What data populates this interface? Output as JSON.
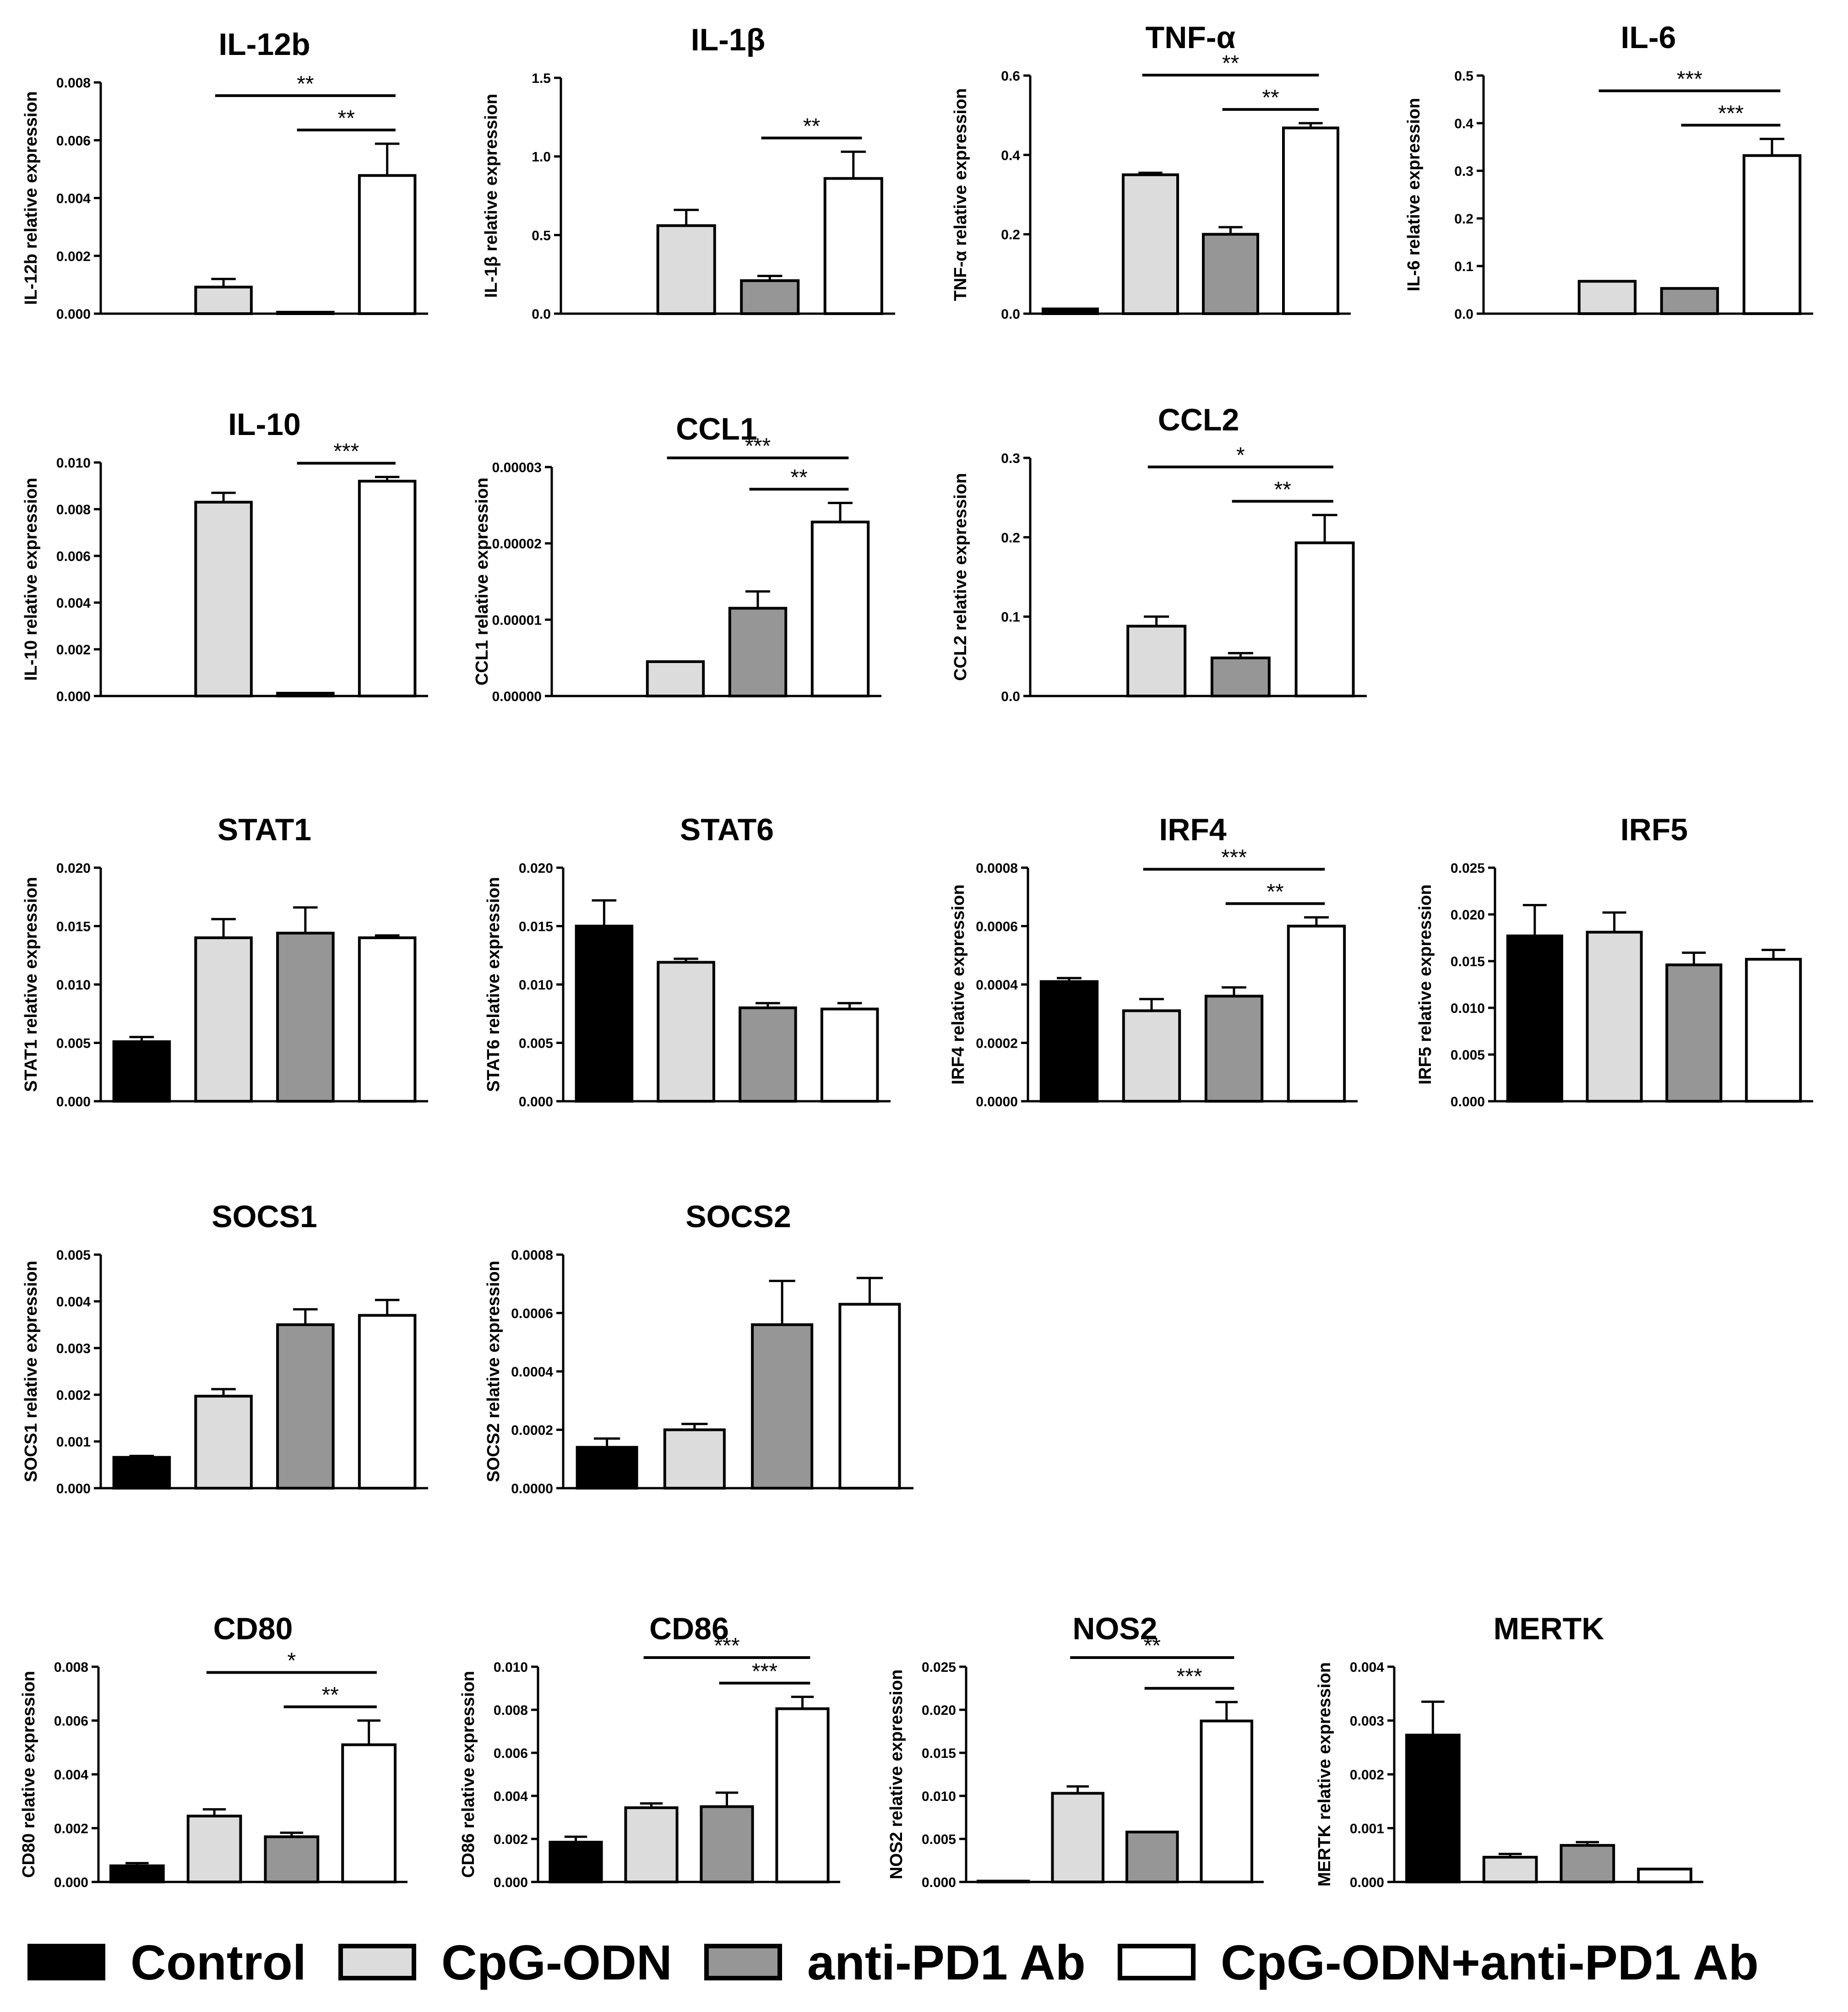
{
  "groups": [
    {
      "name": "Control",
      "color": "#000000"
    },
    {
      "name": "CpG-ODN",
      "color": "#dcdcdc"
    },
    {
      "name": "anti-PD1 Ab",
      "color": "#969696"
    },
    {
      "name": "CpG-ODN+anti-PD1 Ab",
      "color": "#ffffff"
    }
  ],
  "legend": {
    "items": [
      "Control",
      "CpG-ODN",
      "anti-PD1 Ab",
      "CpG-ODN+anti-PD1 Ab"
    ]
  },
  "chart_data": [
    {
      "id": "il12b",
      "type": "bar",
      "title": "IL-12b",
      "ylabel": "IL-12b relative expression",
      "ylim": [
        0,
        0.008
      ],
      "yticks": [
        "0.000",
        "0.002",
        "0.004",
        "0.006",
        "0.008"
      ],
      "categories": [
        "Control",
        "CpG-ODN",
        "anti-PD1 Ab",
        "CpG-ODN+anti-PD1 Ab"
      ],
      "values": [
        0,
        0.00092,
        5e-05,
        0.00478
      ],
      "errors": [
        0,
        0.00028,
        0,
        0.0011
      ],
      "significance": [
        {
          "from": 1,
          "to": 3,
          "label": "**"
        },
        {
          "from": 2,
          "to": 3,
          "label": "**"
        }
      ]
    },
    {
      "id": "il1b",
      "type": "bar",
      "title": "IL-1β",
      "ylabel": "IL-1β relative expression",
      "ylim": [
        0,
        1.5
      ],
      "yticks": [
        "0.0",
        "0.5",
        "1.0",
        "1.5"
      ],
      "categories": [
        "Control",
        "CpG-ODN",
        "anti-PD1 Ab",
        "CpG-ODN+anti-PD1 Ab"
      ],
      "values": [
        0,
        0.56,
        0.21,
        0.86
      ],
      "errors": [
        0,
        0.1,
        0.03,
        0.17
      ],
      "significance": [
        {
          "from": 2,
          "to": 3,
          "label": "**"
        }
      ]
    },
    {
      "id": "tnfa",
      "type": "bar",
      "title": "TNF-α",
      "ylabel": "TNF-α relative expression",
      "ylim": [
        0,
        0.6
      ],
      "yticks": [
        "0.0",
        "0.2",
        "0.4",
        "0.6"
      ],
      "categories": [
        "Control",
        "CpG-ODN",
        "anti-PD1 Ab",
        "CpG-ODN+anti-PD1 Ab"
      ],
      "values": [
        0.012,
        0.35,
        0.2,
        0.468
      ],
      "errors": [
        0,
        0.005,
        0.018,
        0.012
      ],
      "significance": [
        {
          "from": 1,
          "to": 3,
          "label": "**"
        },
        {
          "from": 2,
          "to": 3,
          "label": "**"
        }
      ]
    },
    {
      "id": "il6",
      "type": "bar",
      "title": "IL-6",
      "ylabel": "IL-6 relative expression",
      "ylim": [
        0,
        0.5
      ],
      "yticks": [
        "0.0",
        "0.1",
        "0.2",
        "0.3",
        "0.4",
        "0.5"
      ],
      "categories": [
        "Control",
        "CpG-ODN",
        "anti-PD1 Ab",
        "CpG-ODN+anti-PD1 Ab"
      ],
      "values": [
        0,
        0.068,
        0.053,
        0.332
      ],
      "errors": [
        0,
        0,
        0,
        0.035
      ],
      "significance": [
        {
          "from": 1,
          "to": 3,
          "label": "***"
        },
        {
          "from": 2,
          "to": 3,
          "label": "***"
        }
      ]
    },
    {
      "id": "il10",
      "type": "bar",
      "title": "IL-10",
      "ylabel": "IL-10 relative expression",
      "ylim": [
        0,
        0.01
      ],
      "yticks": [
        "0.000",
        "0.002",
        "0.004",
        "0.006",
        "0.008",
        "0.010"
      ],
      "categories": [
        "Control",
        "CpG-ODN",
        "anti-PD1 Ab",
        "CpG-ODN+anti-PD1 Ab"
      ],
      "values": [
        0,
        0.0083,
        0.00012,
        0.0092
      ],
      "errors": [
        0,
        0.0004,
        0,
        0.00018
      ],
      "significance": [
        {
          "from": 2,
          "to": 3,
          "label": "***"
        }
      ]
    },
    {
      "id": "ccl1",
      "type": "bar",
      "title": "CCL1",
      "ylabel": "CCL1 relative expression",
      "ylim": [
        0,
        3e-05
      ],
      "yticks": [
        "0.00000",
        "0.00001",
        "0.00002",
        "0.00003"
      ],
      "categories": [
        "Control",
        "CpG-ODN",
        "anti-PD1 Ab",
        "CpG-ODN+anti-PD1 Ab"
      ],
      "values": [
        0,
        4.5e-06,
        1.15e-05,
        2.28e-05
      ],
      "errors": [
        0,
        0,
        2.2e-06,
        2.5e-06
      ],
      "significance": [
        {
          "from": 1,
          "to": 3,
          "label": "***"
        },
        {
          "from": 2,
          "to": 3,
          "label": "**"
        }
      ]
    },
    {
      "id": "ccl2",
      "type": "bar",
      "title": "CCL2",
      "ylabel": "CCL2 relative expression",
      "ylim": [
        0,
        0.3
      ],
      "yticks": [
        "0.0",
        "0.1",
        "0.2",
        "0.3"
      ],
      "categories": [
        "Control",
        "CpG-ODN",
        "anti-PD1 Ab",
        "CpG-ODN+anti-PD1 Ab"
      ],
      "values": [
        0,
        0.088,
        0.048,
        0.193
      ],
      "errors": [
        0,
        0.012,
        0.006,
        0.035
      ],
      "significance": [
        {
          "from": 1,
          "to": 3,
          "label": "*"
        },
        {
          "from": 2,
          "to": 3,
          "label": "**"
        }
      ]
    },
    {
      "id": "stat1",
      "type": "bar",
      "title": "STAT1",
      "ylabel": "STAT1 relative expression",
      "ylim": [
        0,
        0.02
      ],
      "yticks": [
        "0.000",
        "0.005",
        "0.010",
        "0.015",
        "0.020"
      ],
      "categories": [
        "Control",
        "CpG-ODN",
        "anti-PD1 Ab",
        "CpG-ODN+anti-PD1 Ab"
      ],
      "values": [
        0.0051,
        0.014,
        0.0144,
        0.014
      ],
      "errors": [
        0.0004,
        0.0016,
        0.0022,
        0.0002
      ],
      "significance": []
    },
    {
      "id": "stat6",
      "type": "bar",
      "title": "STAT6",
      "ylabel": "STAT6 relative expression",
      "ylim": [
        0,
        0.02
      ],
      "yticks": [
        "0.000",
        "0.005",
        "0.010",
        "0.015",
        "0.020"
      ],
      "categories": [
        "Control",
        "CpG-ODN",
        "anti-PD1 Ab",
        "CpG-ODN+anti-PD1 Ab"
      ],
      "values": [
        0.015,
        0.0119,
        0.008,
        0.0079
      ],
      "errors": [
        0.0022,
        0.0003,
        0.0004,
        0.0005
      ],
      "significance": []
    },
    {
      "id": "irf4",
      "type": "bar",
      "title": "IRF4",
      "ylabel": "IRF4 relative expression",
      "ylim": [
        0,
        0.0008
      ],
      "yticks": [
        "0.0000",
        "0.0002",
        "0.0004",
        "0.0006",
        "0.0008"
      ],
      "categories": [
        "Control",
        "CpG-ODN",
        "anti-PD1 Ab",
        "CpG-ODN+anti-PD1 Ab"
      ],
      "values": [
        0.00041,
        0.00031,
        0.00036,
        0.0006
      ],
      "errors": [
        1.2e-05,
        4e-05,
        3e-05,
        3e-05
      ],
      "significance": [
        {
          "from": 1,
          "to": 3,
          "label": "***"
        },
        {
          "from": 2,
          "to": 3,
          "label": "**"
        }
      ]
    },
    {
      "id": "irf5",
      "type": "bar",
      "title": "IRF5",
      "ylabel": "IRF5 relative expression",
      "ylim": [
        0,
        0.025
      ],
      "yticks": [
        "0.000",
        "0.005",
        "0.010",
        "0.015",
        "0.020",
        "0.025"
      ],
      "categories": [
        "Control",
        "CpG-ODN",
        "anti-PD1 Ab",
        "CpG-ODN+anti-PD1 Ab"
      ],
      "values": [
        0.0177,
        0.0181,
        0.0146,
        0.0152
      ],
      "errors": [
        0.0033,
        0.0021,
        0.0013,
        0.001
      ],
      "significance": []
    },
    {
      "id": "socs1",
      "type": "bar",
      "title": "SOCS1",
      "ylabel": "SOCS1 relative expression",
      "ylim": [
        0,
        0.005
      ],
      "yticks": [
        "0.000",
        "0.001",
        "0.002",
        "0.003",
        "0.004",
        "0.005"
      ],
      "categories": [
        "Control",
        "CpG-ODN",
        "anti-PD1 Ab",
        "CpG-ODN+anti-PD1 Ab"
      ],
      "values": [
        0.00066,
        0.00197,
        0.0035,
        0.0037
      ],
      "errors": [
        3e-05,
        0.00015,
        0.00033,
        0.00033
      ],
      "significance": []
    },
    {
      "id": "socs2",
      "type": "bar",
      "title": "SOCS2",
      "ylabel": "SOCS2 relative expression",
      "ylim": [
        0,
        0.0008
      ],
      "yticks": [
        "0.0000",
        "0.0002",
        "0.0004",
        "0.0006",
        "0.0008"
      ],
      "categories": [
        "Control",
        "CpG-ODN",
        "anti-PD1 Ab",
        "CpG-ODN+anti-PD1 Ab"
      ],
      "values": [
        0.00014,
        0.0002,
        0.00056,
        0.00063
      ],
      "errors": [
        3e-05,
        2e-05,
        0.00015,
        9e-05
      ],
      "significance": []
    },
    {
      "id": "cd80",
      "type": "bar",
      "title": "CD80",
      "ylabel": "CD80 relative expression",
      "ylim": [
        0,
        0.008
      ],
      "yticks": [
        "0.000",
        "0.002",
        "0.004",
        "0.006",
        "0.008"
      ],
      "categories": [
        "Control",
        "CpG-ODN",
        "anti-PD1 Ab",
        "CpG-ODN+anti-PD1 Ab"
      ],
      "values": [
        0.0006,
        0.00245,
        0.00168,
        0.0051
      ],
      "errors": [
        0.0001,
        0.00025,
        0.00015,
        0.0009
      ],
      "significance": [
        {
          "from": 1,
          "to": 3,
          "label": "*"
        },
        {
          "from": 2,
          "to": 3,
          "label": "**"
        }
      ]
    },
    {
      "id": "cd86",
      "type": "bar",
      "title": "CD86",
      "ylabel": "CD86 relative expression",
      "ylim": [
        0,
        0.01
      ],
      "yticks": [
        "0.000",
        "0.002",
        "0.004",
        "0.006",
        "0.008",
        "0.010"
      ],
      "categories": [
        "Control",
        "CpG-ODN",
        "anti-PD1 Ab",
        "CpG-ODN+anti-PD1 Ab"
      ],
      "values": [
        0.00185,
        0.00345,
        0.0035,
        0.00805
      ],
      "errors": [
        0.00025,
        0.0002,
        0.00065,
        0.00055
      ],
      "significance": [
        {
          "from": 1,
          "to": 3,
          "label": "***"
        },
        {
          "from": 2,
          "to": 3,
          "label": "***"
        }
      ]
    },
    {
      "id": "nos2",
      "type": "bar",
      "title": "NOS2",
      "ylabel": "NOS2 relative expression",
      "ylim": [
        0,
        0.025
      ],
      "yticks": [
        "0.000",
        "0.005",
        "0.010",
        "0.015",
        "0.020",
        "0.025"
      ],
      "categories": [
        "Control",
        "CpG-ODN",
        "anti-PD1 Ab",
        "CpG-ODN+anti-PD1 Ab"
      ],
      "values": [
        0.0001,
        0.0103,
        0.0058,
        0.0187
      ],
      "errors": [
        0,
        0.0008,
        0,
        0.0022
      ],
      "significance": [
        {
          "from": 1,
          "to": 3,
          "label": "**"
        },
        {
          "from": 2,
          "to": 3,
          "label": "***"
        }
      ]
    },
    {
      "id": "mertk",
      "type": "bar",
      "title": "MERTK",
      "ylabel": "MERTK relative expression",
      "ylim": [
        0,
        0.004
      ],
      "yticks": [
        "0.000",
        "0.001",
        "0.002",
        "0.003",
        "0.004"
      ],
      "categories": [
        "Control",
        "CpG-ODN",
        "anti-PD1 Ab",
        "CpG-ODN+anti-PD1 Ab"
      ],
      "values": [
        0.00273,
        0.00046,
        0.00068,
        0.00024
      ],
      "errors": [
        0.00062,
        6e-05,
        6e-05,
        0
      ],
      "significance": []
    }
  ]
}
